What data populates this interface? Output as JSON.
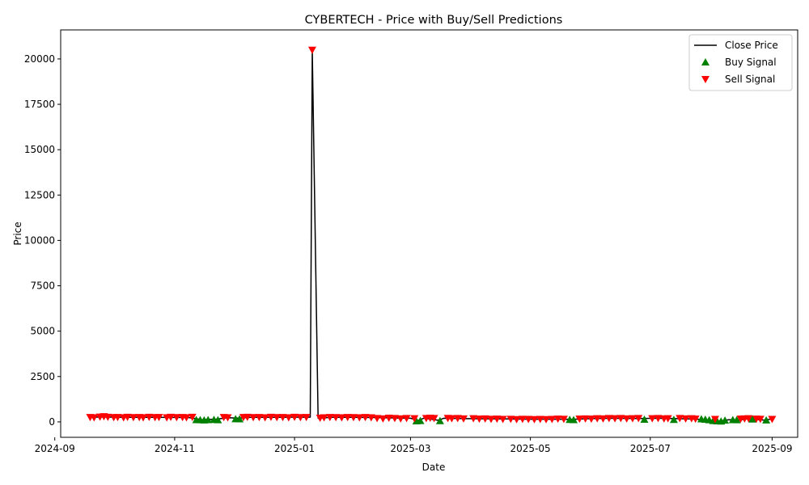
{
  "chart_data": {
    "type": "line",
    "title": "CYBERTECH - Price with Buy/Sell Predictions",
    "xlabel": "Date",
    "ylabel": "Price",
    "xlim": [
      "2024-09-04",
      "2025-09-14"
    ],
    "ylim": [
      -850,
      21600
    ],
    "x_ticks": [
      {
        "date": "2024-09-01",
        "label": "2024-09"
      },
      {
        "date": "2024-11-01",
        "label": "2024-11"
      },
      {
        "date": "2025-01-01",
        "label": "2025-01"
      },
      {
        "date": "2025-03-01",
        "label": "2025-03"
      },
      {
        "date": "2025-05-01",
        "label": "2025-05"
      },
      {
        "date": "2025-07-01",
        "label": "2025-07"
      },
      {
        "date": "2025-09-01",
        "label": "2025-09"
      }
    ],
    "y_ticks": [
      {
        "value": 0,
        "label": "0"
      },
      {
        "value": 2500,
        "label": "2500"
      },
      {
        "value": 5000,
        "label": "5000"
      },
      {
        "value": 7500,
        "label": "7500"
      },
      {
        "value": 10000,
        "label": "10000"
      },
      {
        "value": 12500,
        "label": "12500"
      },
      {
        "value": 15000,
        "label": "15000"
      },
      {
        "value": 17500,
        "label": "17500"
      },
      {
        "value": 20000,
        "label": "20000"
      }
    ],
    "grid": false,
    "legend_position": "top-right",
    "legend": [
      {
        "label": "Close Price",
        "marker": "line",
        "color": "#000000"
      },
      {
        "label": "Buy Signal",
        "marker": "triangle-up",
        "color": "#008000"
      },
      {
        "label": "Sell Signal",
        "marker": "triangle-down",
        "color": "#ff0000"
      }
    ],
    "close_price": [
      [
        "2024-09-18",
        250
      ],
      [
        "2024-09-25",
        270
      ],
      [
        "2024-10-02",
        260
      ],
      [
        "2024-10-10",
        255
      ],
      [
        "2024-10-20",
        250
      ],
      [
        "2024-10-30",
        245
      ],
      [
        "2024-11-08",
        240
      ],
      [
        "2024-11-15",
        120
      ],
      [
        "2024-11-22",
        150
      ],
      [
        "2024-11-28",
        230
      ],
      [
        "2024-12-03",
        210
      ],
      [
        "2024-12-10",
        250
      ],
      [
        "2024-12-20",
        255
      ],
      [
        "2024-12-30",
        260
      ],
      [
        "2025-01-09",
        260
      ],
      [
        "2025-01-10",
        20500
      ],
      [
        "2025-01-13",
        200
      ],
      [
        "2025-01-20",
        250
      ],
      [
        "2025-01-30",
        250
      ],
      [
        "2025-02-10",
        240
      ],
      [
        "2025-02-20",
        220
      ],
      [
        "2025-03-01",
        200
      ],
      [
        "2025-03-05",
        80
      ],
      [
        "2025-03-08",
        210
      ],
      [
        "2025-03-15",
        90
      ],
      [
        "2025-03-18",
        200
      ],
      [
        "2025-03-28",
        180
      ],
      [
        "2025-04-10",
        170
      ],
      [
        "2025-04-20",
        160
      ],
      [
        "2025-05-01",
        150
      ],
      [
        "2025-05-12",
        150
      ],
      [
        "2025-05-22",
        140
      ],
      [
        "2025-06-01",
        180
      ],
      [
        "2025-06-12",
        200
      ],
      [
        "2025-06-25",
        190
      ],
      [
        "2025-07-05",
        200
      ],
      [
        "2025-07-15",
        180
      ],
      [
        "2025-07-25",
        150
      ],
      [
        "2025-08-01",
        60
      ],
      [
        "2025-08-05",
        40
      ],
      [
        "2025-08-10",
        120
      ],
      [
        "2025-08-15",
        100
      ],
      [
        "2025-08-20",
        180
      ],
      [
        "2025-08-28",
        100
      ],
      [
        "2025-09-01",
        160
      ]
    ],
    "buy_signals": [
      [
        "2024-11-12",
        110
      ],
      [
        "2024-11-14",
        100
      ],
      [
        "2024-11-16",
        90
      ],
      [
        "2024-11-18",
        110
      ],
      [
        "2024-11-21",
        120
      ],
      [
        "2024-11-23",
        100
      ],
      [
        "2024-12-02",
        160
      ],
      [
        "2024-12-04",
        150
      ],
      [
        "2025-03-04",
        40
      ],
      [
        "2025-03-06",
        60
      ],
      [
        "2025-03-16",
        50
      ],
      [
        "2025-05-21",
        120
      ],
      [
        "2025-05-23",
        110
      ],
      [
        "2025-06-28",
        130
      ],
      [
        "2025-07-13",
        120
      ],
      [
        "2025-07-27",
        150
      ],
      [
        "2025-07-29",
        130
      ],
      [
        "2025-07-31",
        100
      ],
      [
        "2025-08-02",
        60
      ],
      [
        "2025-08-04",
        40
      ],
      [
        "2025-08-06",
        30
      ],
      [
        "2025-08-08",
        80
      ],
      [
        "2025-08-12",
        110
      ],
      [
        "2025-08-14",
        100
      ],
      [
        "2025-08-22",
        140
      ],
      [
        "2025-08-29",
        90
      ]
    ],
    "sell_signals": [
      [
        "2024-09-19",
        260
      ],
      [
        "2024-09-21",
        240
      ],
      [
        "2024-09-24",
        280
      ],
      [
        "2024-09-26",
        300
      ],
      [
        "2024-09-28",
        270
      ],
      [
        "2024-10-01",
        250
      ],
      [
        "2024-10-03",
        260
      ],
      [
        "2024-10-06",
        240
      ],
      [
        "2024-10-08",
        270
      ],
      [
        "2024-10-11",
        250
      ],
      [
        "2024-10-14",
        260
      ],
      [
        "2024-10-16",
        240
      ],
      [
        "2024-10-19",
        270
      ],
      [
        "2024-10-22",
        250
      ],
      [
        "2024-10-24",
        260
      ],
      [
        "2024-10-28",
        240
      ],
      [
        "2024-10-30",
        270
      ],
      [
        "2024-11-02",
        250
      ],
      [
        "2024-11-05",
        260
      ],
      [
        "2024-11-07",
        240
      ],
      [
        "2024-11-10",
        270
      ],
      [
        "2024-11-26",
        260
      ],
      [
        "2024-11-28",
        240
      ],
      [
        "2024-12-06",
        260
      ],
      [
        "2024-12-08",
        270
      ],
      [
        "2024-12-11",
        250
      ],
      [
        "2024-12-14",
        260
      ],
      [
        "2024-12-17",
        240
      ],
      [
        "2024-12-20",
        270
      ],
      [
        "2024-12-23",
        250
      ],
      [
        "2024-12-26",
        260
      ],
      [
        "2024-12-29",
        240
      ],
      [
        "2025-01-01",
        270
      ],
      [
        "2025-01-04",
        250
      ],
      [
        "2025-01-07",
        260
      ],
      [
        "2025-01-10",
        20500
      ],
      [
        "2025-01-14",
        220
      ],
      [
        "2025-01-16",
        240
      ],
      [
        "2025-01-19",
        260
      ],
      [
        "2025-01-22",
        250
      ],
      [
        "2025-01-25",
        240
      ],
      [
        "2025-01-28",
        260
      ],
      [
        "2025-01-31",
        250
      ],
      [
        "2025-02-03",
        240
      ],
      [
        "2025-02-06",
        260
      ],
      [
        "2025-02-09",
        240
      ],
      [
        "2025-02-12",
        200
      ],
      [
        "2025-02-15",
        180
      ],
      [
        "2025-02-18",
        220
      ],
      [
        "2025-02-21",
        200
      ],
      [
        "2025-02-24",
        180
      ],
      [
        "2025-02-27",
        200
      ],
      [
        "2025-03-03",
        190
      ],
      [
        "2025-03-09",
        200
      ],
      [
        "2025-03-11",
        220
      ],
      [
        "2025-03-13",
        200
      ],
      [
        "2025-03-20",
        210
      ],
      [
        "2025-03-22",
        190
      ],
      [
        "2025-03-25",
        200
      ],
      [
        "2025-03-28",
        180
      ],
      [
        "2025-04-02",
        190
      ],
      [
        "2025-04-05",
        170
      ],
      [
        "2025-04-08",
        180
      ],
      [
        "2025-04-11",
        160
      ],
      [
        "2025-04-14",
        170
      ],
      [
        "2025-04-17",
        150
      ],
      [
        "2025-04-21",
        160
      ],
      [
        "2025-04-24",
        140
      ],
      [
        "2025-04-27",
        160
      ],
      [
        "2025-04-30",
        150
      ],
      [
        "2025-05-03",
        140
      ],
      [
        "2025-05-06",
        150
      ],
      [
        "2025-05-09",
        140
      ],
      [
        "2025-05-12",
        150
      ],
      [
        "2025-05-15",
        170
      ],
      [
        "2025-05-18",
        160
      ],
      [
        "2025-05-26",
        170
      ],
      [
        "2025-05-29",
        180
      ],
      [
        "2025-06-01",
        170
      ],
      [
        "2025-06-04",
        190
      ],
      [
        "2025-06-07",
        180
      ],
      [
        "2025-06-10",
        200
      ],
      [
        "2025-06-13",
        190
      ],
      [
        "2025-06-16",
        200
      ],
      [
        "2025-06-19",
        180
      ],
      [
        "2025-06-22",
        190
      ],
      [
        "2025-06-25",
        200
      ],
      [
        "2025-07-02",
        190
      ],
      [
        "2025-07-05",
        200
      ],
      [
        "2025-07-08",
        180
      ],
      [
        "2025-07-10",
        190
      ],
      [
        "2025-07-16",
        200
      ],
      [
        "2025-07-19",
        180
      ],
      [
        "2025-07-22",
        190
      ],
      [
        "2025-07-24",
        170
      ],
      [
        "2025-08-03",
        150
      ],
      [
        "2025-08-16",
        170
      ],
      [
        "2025-08-18",
        180
      ],
      [
        "2025-08-20",
        190
      ],
      [
        "2025-08-24",
        170
      ],
      [
        "2025-08-26",
        160
      ],
      [
        "2025-09-01",
        150
      ]
    ]
  }
}
